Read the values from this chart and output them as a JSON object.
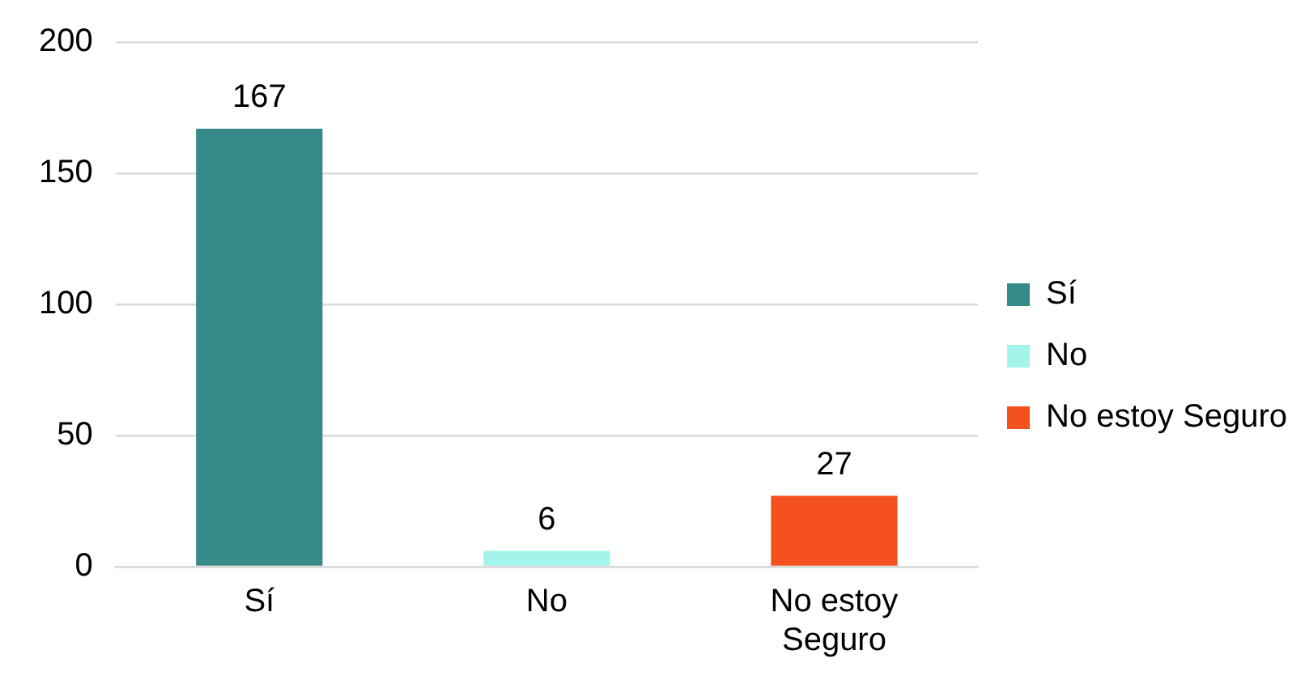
{
  "chart_data": {
    "type": "bar",
    "categories": [
      "Sí",
      "No",
      "No estoy Seguro"
    ],
    "series": [
      {
        "name": "Sí",
        "color": "#368a87",
        "values": [
          167,
          null,
          null
        ]
      },
      {
        "name": "No",
        "color": "#a3f5ec",
        "values": [
          null,
          6,
          null
        ]
      },
      {
        "name": "No estoy Seguro",
        "color": "#f4511e",
        "values": [
          null,
          null,
          27
        ]
      }
    ],
    "ylim": [
      0,
      200
    ],
    "yticks": [
      0,
      50,
      100,
      150,
      200
    ],
    "grid": "y",
    "legend": "right",
    "data_labels": true
  }
}
